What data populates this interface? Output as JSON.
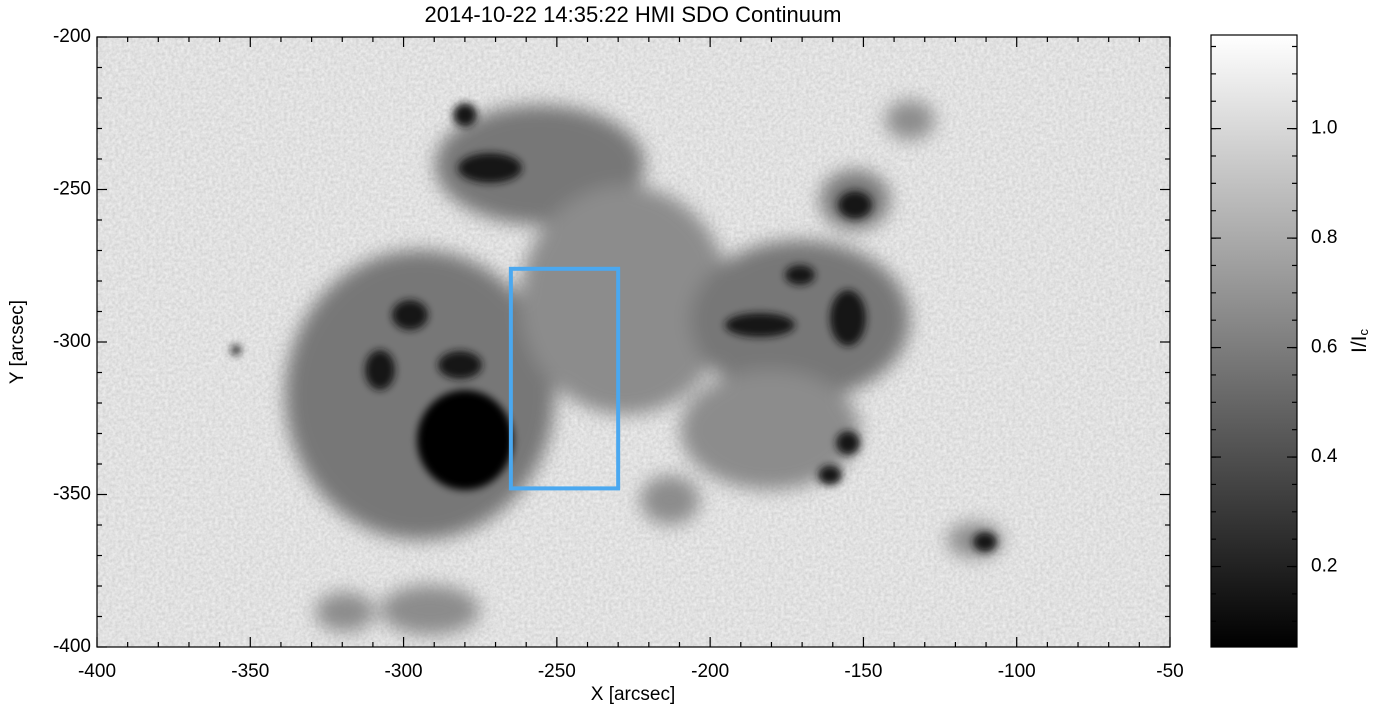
{
  "chart_data": {
    "type": "image",
    "title": "2014-10-22 14:35:22 HMI SDO Continuum",
    "xlabel": "X [arcsec]",
    "ylabel": "Y [arcsec]",
    "xlim": [
      -400,
      -50
    ],
    "ylim": [
      -400,
      -200
    ],
    "xticks": [
      -400,
      -350,
      -300,
      -250,
      -200,
      -150,
      -100,
      -50
    ],
    "yticks": [
      -400,
      -350,
      -300,
      -250,
      -200
    ],
    "colorbar": {
      "label": "I/I",
      "label_sub": "c",
      "clim": [
        0.053,
        1.171
      ],
      "ticks": [
        0.2,
        0.4,
        0.6,
        0.8,
        {
          "value": 1,
          "label": "1.0"
        }
      ]
    },
    "box": {
      "x": [
        -265,
        -230
      ],
      "y": [
        -348,
        -276
      ],
      "color": "#4aa8f0"
    }
  }
}
